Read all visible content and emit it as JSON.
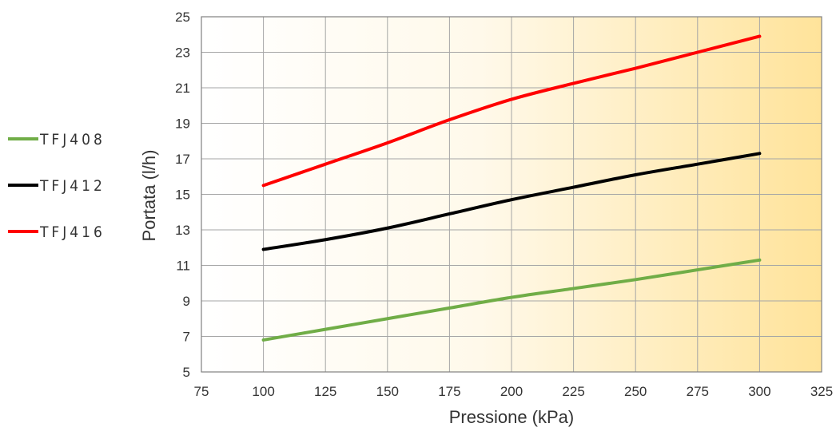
{
  "chart_data": {
    "type": "line",
    "title": "",
    "xlabel": "Pressione (kPa)",
    "ylabel": "Portata (l/h)",
    "xlim": [
      75,
      325
    ],
    "ylim": [
      5,
      25
    ],
    "x_ticks": [
      75,
      100,
      125,
      150,
      175,
      200,
      225,
      250,
      275,
      300,
      325
    ],
    "y_ticks": [
      5,
      7,
      9,
      11,
      13,
      15,
      17,
      19,
      21,
      23,
      25
    ],
    "grid": true,
    "legend_position": "left",
    "background": "gradient white to light yellow",
    "series": [
      {
        "name": "TFJ408",
        "color": "#70ad47",
        "x": [
          100,
          125,
          150,
          175,
          200,
          225,
          250,
          275,
          300
        ],
        "y": [
          6.8,
          7.4,
          8.0,
          8.6,
          9.2,
          9.7,
          10.2,
          10.75,
          11.3
        ]
      },
      {
        "name": "TFJ412",
        "color": "#000000",
        "x": [
          100,
          125,
          150,
          175,
          200,
          225,
          250,
          275,
          300
        ],
        "y": [
          11.9,
          12.45,
          13.1,
          13.9,
          14.7,
          15.4,
          16.1,
          16.7,
          17.3
        ]
      },
      {
        "name": "TFJ416",
        "color": "#ff0000",
        "x": [
          100,
          125,
          150,
          175,
          200,
          225,
          250,
          275,
          300
        ],
        "y": [
          15.5,
          16.7,
          17.9,
          19.2,
          20.35,
          21.25,
          22.1,
          23.0,
          23.9
        ]
      }
    ]
  }
}
